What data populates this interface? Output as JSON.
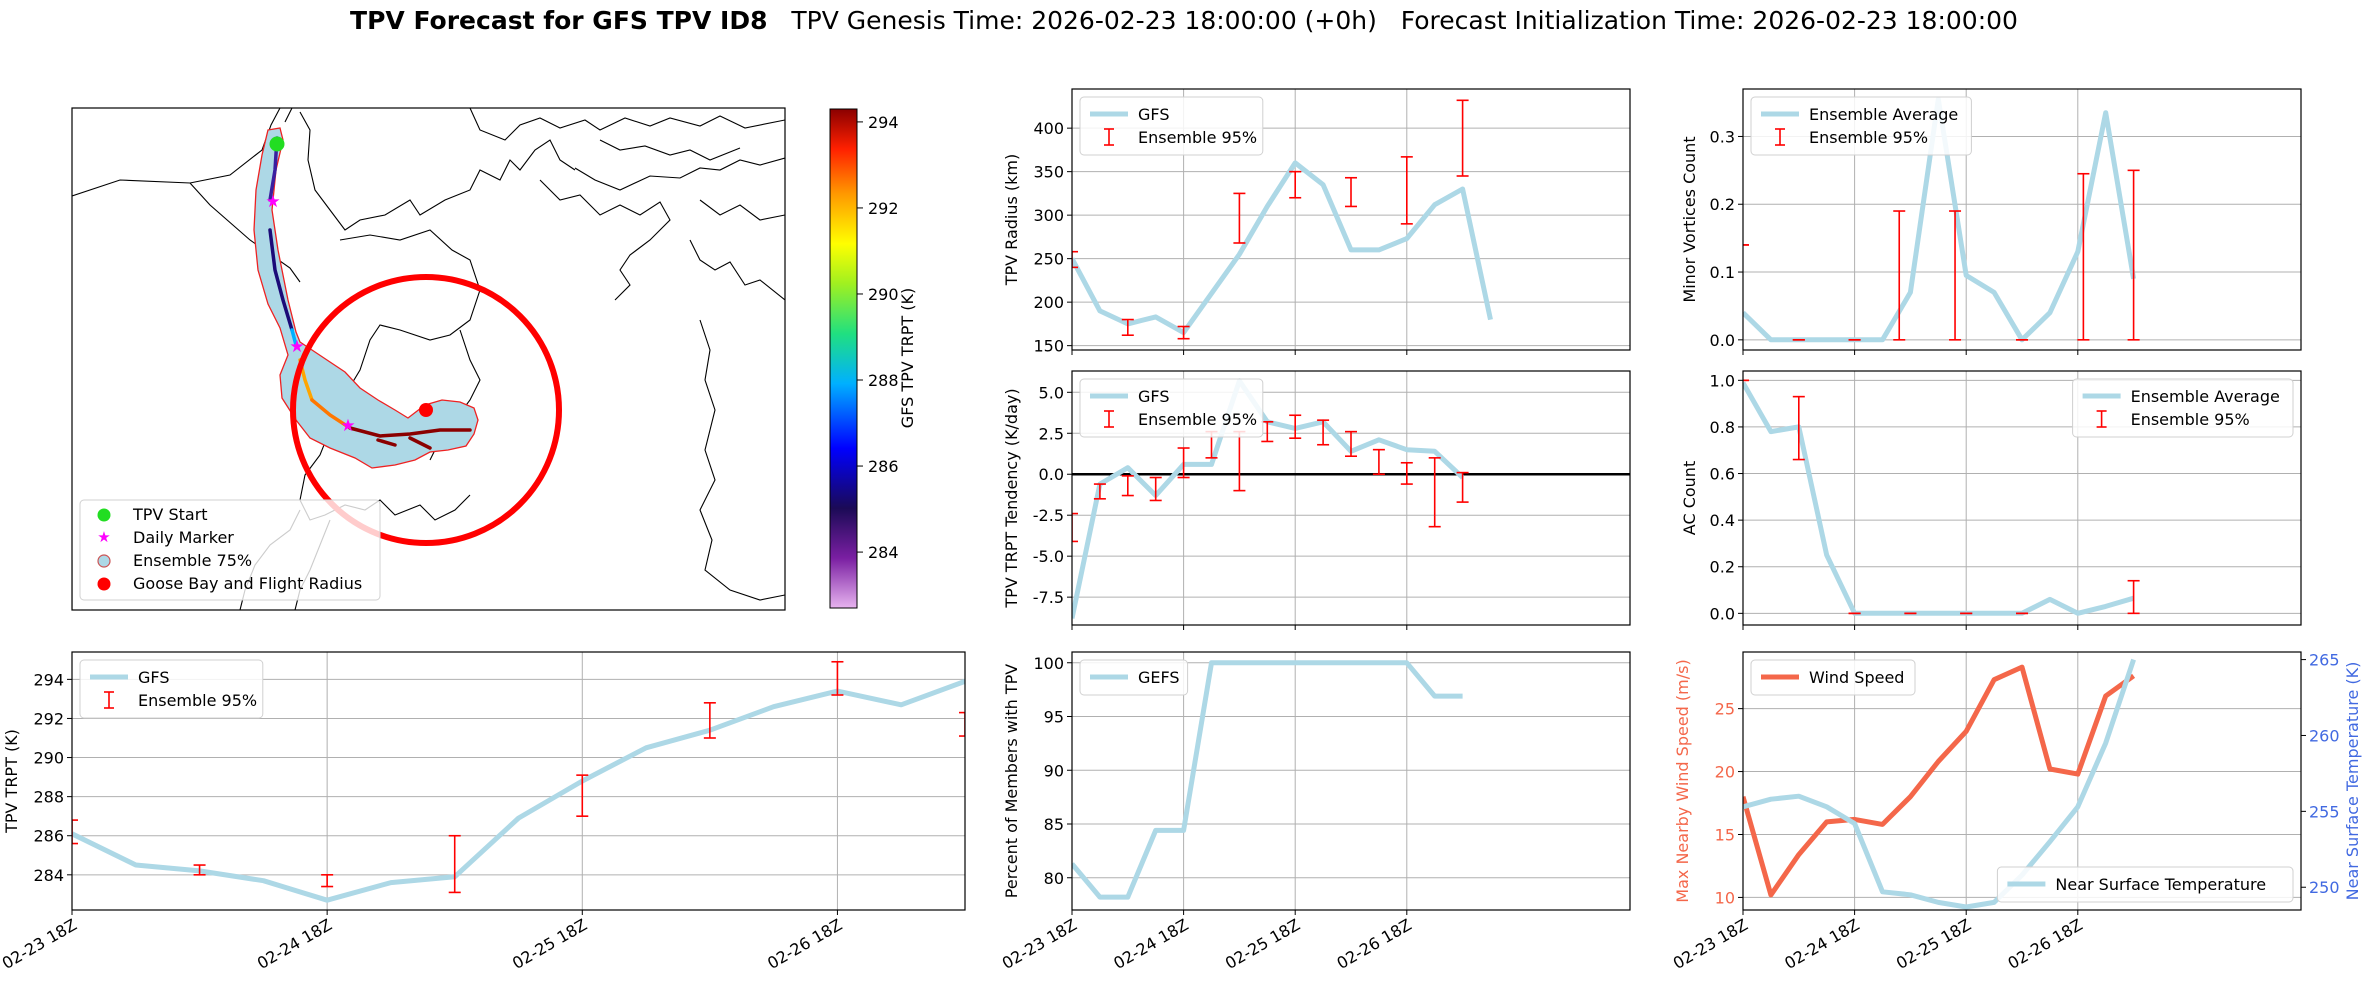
{
  "suptitle": {
    "bold": "TPV Forecast for GFS TPV ID8",
    "genesis": "TPV Genesis Time: 2026-02-23 18:00:00 (+0h)",
    "init": "Forecast Initialization Time: 2026-02-23 18:00:00"
  },
  "colors": {
    "gfs_line": "#add8e6",
    "ens_bar": "#ff0000",
    "wind": "#f4674a",
    "temp": "#add8e6",
    "wind_axis": "#f4674a",
    "temp_axis": "#4169e1",
    "zero_line": "#000000",
    "grid": "#b0b0b0"
  },
  "x_ticks": [
    "02-23 18Z",
    "02-24 18Z",
    "02-25 18Z",
    "02-26 18Z"
  ],
  "map": {
    "colorbar_label": "GFS TPV TRPT (K)",
    "colorbar_ticks": [
      "284",
      "286",
      "288",
      "290",
      "292",
      "294"
    ],
    "legend": [
      "TPV Start",
      "Daily Marker",
      "Ensemble 75%",
      "Goose Bay and Flight Radius"
    ]
  },
  "chart_data": [
    {
      "id": "radius",
      "type": "line",
      "title": "",
      "ylabel": "TPV Radius (km)",
      "xlabel": "",
      "ylim": [
        145,
        445
      ],
      "yticks": [
        150,
        200,
        250,
        300,
        350,
        400
      ],
      "xlim": [
        0,
        20
      ],
      "legend": [
        "GFS",
        "Ensemble 95%"
      ],
      "legend_pos": "upper-left",
      "series": [
        {
          "name": "GFS",
          "x": [
            0,
            1,
            2,
            3,
            4,
            5,
            6,
            7,
            8,
            9,
            10,
            11,
            12,
            13,
            14,
            15,
            16,
            17,
            18,
            19,
            20
          ],
          "values": [
            250,
            190,
            175,
            183,
            165,
            210,
            255,
            310,
            360,
            335,
            260,
            260,
            273,
            312,
            330,
            180,
            null,
            null,
            null,
            null,
            null
          ]
        }
      ],
      "errorbars": [
        {
          "x": 0,
          "lo": 240,
          "hi": 258
        },
        {
          "x": 2,
          "lo": 162,
          "hi": 180
        },
        {
          "x": 4,
          "lo": 158,
          "hi": 172
        },
        {
          "x": 6,
          "lo": 268,
          "hi": 325
        },
        {
          "x": 8,
          "lo": 320,
          "hi": 350
        },
        {
          "x": 10,
          "lo": 310,
          "hi": 343
        },
        {
          "x": 12,
          "lo": 290,
          "hi": 367
        },
        {
          "x": 14,
          "lo": 345,
          "hi": 432
        }
      ]
    },
    {
      "id": "minor",
      "type": "line",
      "ylabel": "Minor Vortices Count",
      "xlabel": "",
      "ylim": [
        -0.015,
        0.37
      ],
      "yticks": [
        0.0,
        0.1,
        0.2,
        0.3
      ],
      "xlim": [
        0,
        20
      ],
      "legend": [
        "Ensemble Average",
        "Ensemble 95%"
      ],
      "legend_pos": "upper-left",
      "series": [
        {
          "name": "Ensemble Average",
          "x": [
            0,
            1,
            2,
            3,
            4,
            5,
            6,
            7,
            8,
            9,
            10,
            11,
            12,
            13,
            14,
            15,
            16,
            17,
            18,
            19,
            20
          ],
          "values": [
            0.04,
            0,
            0,
            0,
            0,
            0.0,
            0.07,
            0.355,
            0.095,
            0.07,
            0.0,
            0.04,
            0.13,
            0.335,
            0.09,
            null,
            null,
            null,
            null,
            null,
            null
          ]
        }
      ],
      "errorbars": [
        {
          "x": 0,
          "lo": 0.14,
          "hi": 0.14
        },
        {
          "x": 2,
          "lo": 0,
          "hi": 0
        },
        {
          "x": 4,
          "lo": 0,
          "hi": 0
        },
        {
          "x": 5.6,
          "lo": 0,
          "hi": 0.19
        },
        {
          "x": 7.6,
          "lo": 0,
          "hi": 0.19
        },
        {
          "x": 10,
          "lo": 0,
          "hi": 0
        },
        {
          "x": 12.2,
          "lo": 0,
          "hi": 0.245
        },
        {
          "x": 14,
          "lo": 0,
          "hi": 0.25
        }
      ]
    },
    {
      "id": "tendency",
      "type": "line",
      "ylabel": "TPV TRPT Tendency (K/day)",
      "xlabel": "",
      "ylim": [
        -9.2,
        6.3
      ],
      "yticks": [
        -7.5,
        -5.0,
        -2.5,
        0.0,
        2.5,
        5.0
      ],
      "xlim": [
        0,
        20
      ],
      "legend": [
        "GFS",
        "Ensemble 95%"
      ],
      "legend_pos": "upper-left",
      "series": [
        {
          "name": "GFS",
          "x": [
            0,
            1,
            2,
            3,
            4,
            5,
            6,
            7,
            8,
            9,
            10,
            11,
            12,
            13,
            14
          ],
          "values": [
            -8.8,
            -0.6,
            0.4,
            -1.3,
            0.6,
            0.6,
            5.7,
            3.2,
            2.8,
            3.2,
            1.4,
            2.1,
            1.5,
            1.4,
            -0.2
          ]
        }
      ],
      "zero_line": 0,
      "errorbars": [
        {
          "x": 0,
          "lo": -4.1,
          "hi": -2.4
        },
        {
          "x": 1,
          "lo": -1.5,
          "hi": -0.6
        },
        {
          "x": 2,
          "lo": -1.3,
          "hi": -0.1
        },
        {
          "x": 3,
          "lo": -1.6,
          "hi": -0.2
        },
        {
          "x": 4,
          "lo": -0.2,
          "hi": 1.6
        },
        {
          "x": 5,
          "lo": 1.0,
          "hi": 2.6
        },
        {
          "x": 6,
          "lo": -1.0,
          "hi": 2.6
        },
        {
          "x": 7,
          "lo": 2.0,
          "hi": 3.2
        },
        {
          "x": 8,
          "lo": 2.2,
          "hi": 3.6
        },
        {
          "x": 9,
          "lo": 1.8,
          "hi": 3.3
        },
        {
          "x": 10,
          "lo": 1.1,
          "hi": 2.6
        },
        {
          "x": 11,
          "lo": 0.0,
          "hi": 1.5
        },
        {
          "x": 12,
          "lo": -0.6,
          "hi": 0.7
        },
        {
          "x": 13,
          "lo": -3.2,
          "hi": 1.0
        },
        {
          "x": 14,
          "lo": -1.7,
          "hi": 0.1
        }
      ]
    },
    {
      "id": "ac",
      "type": "line",
      "ylabel": "AC Count",
      "xlabel": "",
      "ylim": [
        -0.05,
        1.04
      ],
      "yticks": [
        0.0,
        0.2,
        0.4,
        0.6,
        0.8,
        1.0
      ],
      "xlim": [
        0,
        20
      ],
      "legend": [
        "Ensemble Average",
        "Ensemble 95%"
      ],
      "legend_pos": "upper-right",
      "series": [
        {
          "name": "Ensemble Average",
          "x": [
            0,
            1,
            2,
            3,
            4,
            5,
            6,
            7,
            8,
            9,
            10,
            11,
            12,
            13,
            14
          ],
          "values": [
            0.99,
            0.78,
            0.8,
            0.25,
            0,
            0,
            0,
            0,
            0,
            0,
            0,
            0.06,
            0,
            0.03,
            0.065
          ]
        }
      ],
      "errorbars": [
        {
          "x": 0,
          "lo": 1.0,
          "hi": 1.0
        },
        {
          "x": 2,
          "lo": 0.66,
          "hi": 0.93
        },
        {
          "x": 4,
          "lo": 0,
          "hi": 0
        },
        {
          "x": 6,
          "lo": 0,
          "hi": 0
        },
        {
          "x": 8,
          "lo": 0,
          "hi": 0
        },
        {
          "x": 10,
          "lo": 0,
          "hi": 0
        },
        {
          "x": 14,
          "lo": 0,
          "hi": 0.14
        }
      ]
    },
    {
      "id": "trpt",
      "type": "line",
      "ylabel": "TPV TRPT (K)",
      "xlabel": "",
      "ylim": [
        282.2,
        295.4
      ],
      "yticks": [
        284,
        286,
        288,
        290,
        292,
        294
      ],
      "xlim": [
        0,
        14
      ],
      "legend": [
        "GFS",
        "Ensemble 95%"
      ],
      "legend_pos": "upper-left",
      "series": [
        {
          "name": "GFS",
          "x": [
            0,
            1,
            2,
            3,
            4,
            5,
            6,
            7,
            8,
            9,
            10,
            11,
            12,
            13,
            14
          ],
          "values": [
            286.1,
            284.5,
            284.2,
            283.7,
            282.7,
            283.6,
            283.9,
            286.9,
            288.8,
            290.5,
            291.4,
            292.6,
            293.4,
            292.7,
            293.9
          ]
        }
      ],
      "errorbars": [
        {
          "x": 0,
          "lo": 285.6,
          "hi": 286.8
        },
        {
          "x": 2,
          "lo": 284.0,
          "hi": 284.5
        },
        {
          "x": 4,
          "lo": 283.4,
          "hi": 284.0
        },
        {
          "x": 6,
          "lo": 283.1,
          "hi": 286.0
        },
        {
          "x": 8,
          "lo": 287.0,
          "hi": 289.1
        },
        {
          "x": 10,
          "lo": 291.0,
          "hi": 292.8
        },
        {
          "x": 12,
          "lo": 293.2,
          "hi": 294.9
        },
        {
          "x": 14,
          "lo": 291.1,
          "hi": 292.3
        }
      ]
    },
    {
      "id": "percent",
      "type": "line",
      "ylabel": "Percent of Members with TPV",
      "xlabel": "",
      "ylim": [
        77,
        101
      ],
      "yticks": [
        80,
        85,
        90,
        95,
        100
      ],
      "xlim": [
        0,
        20
      ],
      "legend": [
        "GEFS"
      ],
      "legend_pos": "upper-left",
      "series": [
        {
          "name": "GEFS",
          "x": [
            0,
            1,
            2,
            3,
            4,
            5,
            6,
            7,
            8,
            9,
            10,
            11,
            12,
            13,
            14
          ],
          "values": [
            81.3,
            78.2,
            78.2,
            84.4,
            84.4,
            100,
            100,
            100,
            100,
            100,
            100,
            100,
            100,
            96.9,
            96.9
          ]
        }
      ],
      "errorbars": []
    },
    {
      "id": "wind",
      "type": "line",
      "ylabel": "Max Nearby Wind Speed (m/s)",
      "ylabel2": "Near Surface Temperature (K)",
      "xlabel": "",
      "ylim": [
        9,
        29.5
      ],
      "yticks": [
        10,
        15,
        20,
        25
      ],
      "ylim2": [
        248.5,
        265.5
      ],
      "yticks2": [
        250,
        255,
        260,
        265
      ],
      "xlim": [
        0,
        20
      ],
      "legend": [
        "Wind Speed"
      ],
      "legend2": [
        "Near Surface Temperature"
      ],
      "series": [
        {
          "name": "Wind Speed",
          "x": [
            0,
            1,
            2,
            3,
            4,
            5,
            6,
            7,
            8,
            9,
            10,
            11,
            12,
            13,
            14
          ],
          "values": [
            18.0,
            10.2,
            13.4,
            16.0,
            16.2,
            15.8,
            18.0,
            20.8,
            23.2,
            27.3,
            28.3,
            20.2,
            19.8,
            26.0,
            27.6
          ]
        },
        {
          "name": "Near Surface Temperature",
          "axis": "right",
          "x": [
            0,
            1,
            2,
            3,
            4,
            5,
            6,
            7,
            8,
            9,
            10,
            11,
            12,
            13,
            14
          ],
          "values": [
            255.3,
            255.8,
            256.0,
            255.3,
            254.2,
            249.7,
            249.5,
            249.0,
            248.7,
            249.0,
            250.8,
            253.0,
            255.3,
            259.5,
            265.0
          ]
        }
      ],
      "errorbars": []
    }
  ]
}
